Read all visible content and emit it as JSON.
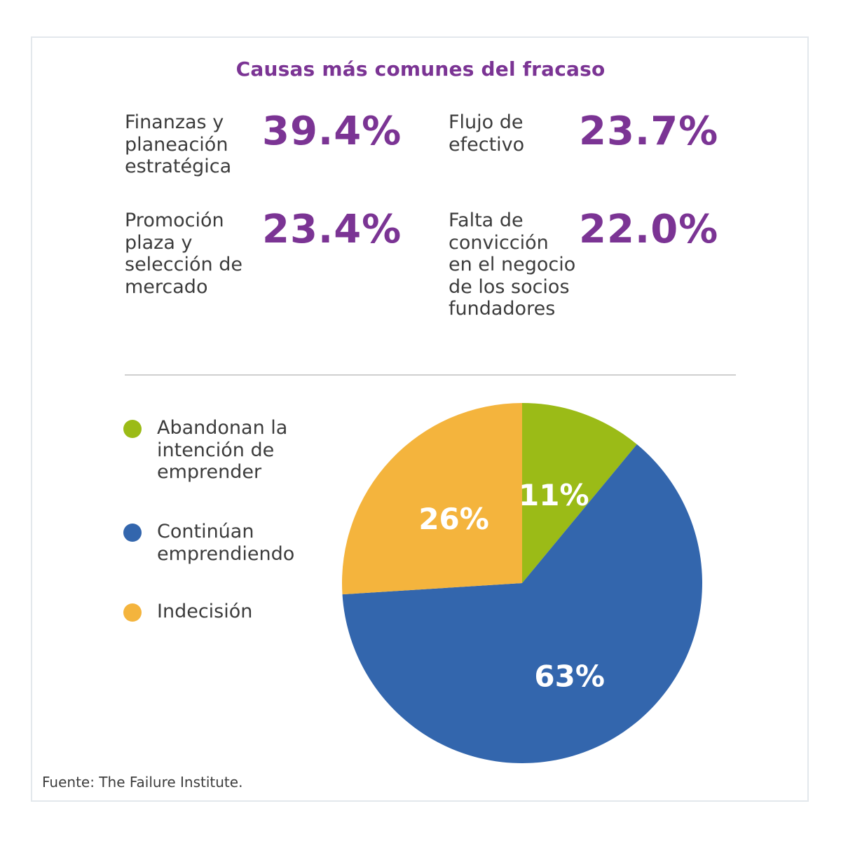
{
  "title": "Causas más comunes del fracaso",
  "stats": [
    {
      "label_lines": [
        "Finanzas y",
        "planeación",
        "estratégica"
      ],
      "value": "39.4%"
    },
    {
      "label_lines": [
        "Flujo de",
        "efectivo"
      ],
      "value": "23.7%"
    },
    {
      "label_lines": [
        "Promoción",
        "plaza y",
        "selección de",
        "mercado"
      ],
      "value": "23.4%"
    },
    {
      "label_lines": [
        "Falta de",
        "convicción",
        "en el negocio",
        "de los socios",
        "fundadores"
      ],
      "value": "22.0%"
    }
  ],
  "chart_data": {
    "type": "pie",
    "title": "",
    "legend_position": "left",
    "slices": [
      {
        "name": "Abandonan la intención de emprender",
        "legend_lines": [
          "Abandonan la",
          "intención de",
          "emprender"
        ],
        "value": 11,
        "label": "11%",
        "color": "#9bbb17"
      },
      {
        "name": "Continúan emprendiendo",
        "legend_lines": [
          "Continúan",
          "emprendiendo"
        ],
        "value": 63,
        "label": "63%",
        "color": "#3366ad"
      },
      {
        "name": "Indecisión",
        "legend_lines": [
          "Indecisión"
        ],
        "value": 26,
        "label": "26%",
        "color": "#f4b43d"
      }
    ]
  },
  "colors": {
    "accent": "#7b3494",
    "text": "#3c3c3c",
    "divider": "#cfcfcf",
    "frame": "#e3e8ec"
  },
  "source": "Fuente: The Failure Institute."
}
